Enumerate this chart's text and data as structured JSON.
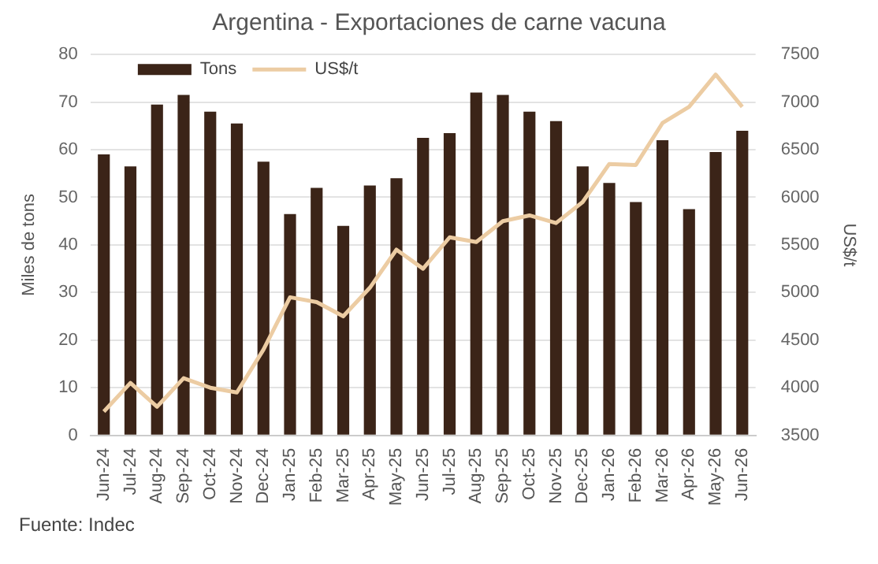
{
  "chart_data": {
    "type": "bar",
    "title": "Argentina - Exportaciones de carne vacuna",
    "ylabel": "Miles de tons",
    "y2label": "US$/t",
    "categories": [
      "Jun-24",
      "Jul-24",
      "Aug-24",
      "Sep-24",
      "Oct-24",
      "Nov-24",
      "Dec-24",
      "Jan-25",
      "Feb-25",
      "Mar-25",
      "Apr-25",
      "May-25",
      "Jun-25",
      "Jul-25",
      "Aug-25",
      "Sep-25",
      "Oct-25",
      "Nov-25",
      "Dec-25",
      "Jan-26",
      "Feb-26",
      "Mar-26",
      "Apr-26",
      "May-26",
      "Jun-26"
    ],
    "series": [
      {
        "name": "Tons",
        "color": "#3b2418",
        "values": [
          59,
          56.5,
          69.5,
          71.5,
          68,
          65.5,
          57.5,
          46.5,
          52,
          44,
          52.5,
          54,
          62.5,
          63.5,
          72,
          71.5,
          68,
          66,
          56.5,
          53,
          49,
          62,
          47.5,
          59.5,
          64
        ]
      },
      {
        "name": "US$/t",
        "type": "line",
        "axis": "y2",
        "color": "#eccca3",
        "values": [
          3750,
          4050,
          3800,
          4100,
          4000,
          3950,
          4400,
          4950,
          4900,
          4750,
          5050,
          5450,
          5250,
          5580,
          5530,
          5750,
          5810,
          5730,
          5950,
          6350,
          6340,
          6780,
          6950,
          7290,
          6950
        ]
      }
    ],
    "ylim": [
      0,
      80
    ],
    "yticks": [
      0,
      10,
      20,
      30,
      40,
      50,
      60,
      70,
      80
    ],
    "y2lim": [
      3500,
      7500
    ],
    "y2ticks": [
      3500,
      4000,
      4500,
      5000,
      5500,
      6000,
      6500,
      7000,
      7500
    ],
    "grid": "y",
    "legend": "top left",
    "marker": "none",
    "annotations": [
      "Fuente: Indec"
    ]
  }
}
